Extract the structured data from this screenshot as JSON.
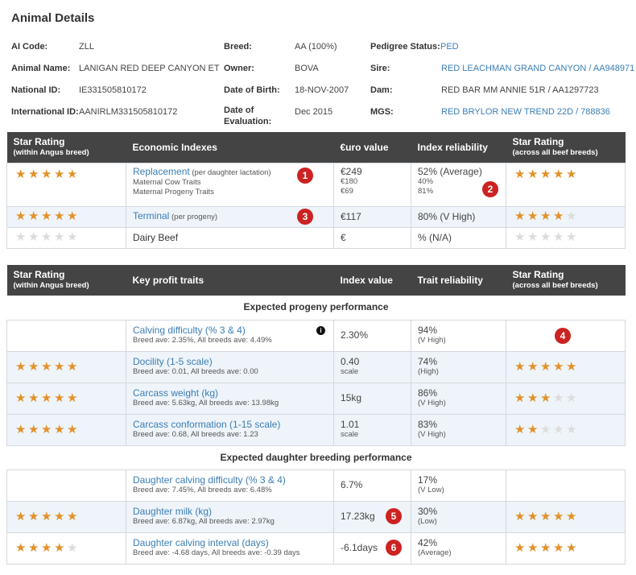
{
  "title": "Animal Details",
  "details": {
    "ai_code_label": "AI Code:",
    "ai_code": "ZLL",
    "animal_name_label": "Animal Name:",
    "animal_name": "LANIGAN RED DEEP CANYON ET",
    "national_id_label": "National ID:",
    "national_id": "IE331505810172",
    "international_id_label": "International ID:",
    "international_id": "AANIRLM331505810172",
    "breed_label": "Breed:",
    "breed": "AA (100%)",
    "owner_label": "Owner:",
    "owner": "BOVA",
    "dob_label": "Date of Birth:",
    "dob": "18-NOV-2007",
    "doe_label_1": "Date of",
    "doe_label_2": "Evaluation:",
    "doe": "Dec 2015",
    "pedigree_label": "Pedigree Status:",
    "pedigree": "PED",
    "sire_label": "Sire:",
    "sire": "RED LEACHMAN GRAND CANYON / AA948971",
    "dam_label": "Dam:",
    "dam": "RED BAR MM ANNIE 51R / AA1297723",
    "mgs_label": "MGS:",
    "mgs": "RED BRYLOR NEW TREND 22D / 788836"
  },
  "econ": {
    "headers": {
      "star_within": "Star Rating",
      "star_within_sub": "(within Angus breed)",
      "indexes": "Economic Indexes",
      "value": "€uro value",
      "reliability": "Index reliability",
      "star_across": "Star Rating",
      "star_across_sub": "(across all beef breeds)"
    },
    "rows": [
      {
        "stars_within": 5,
        "name": "Replacement",
        "note": " (per daughter lactation)",
        "sub1": "Maternal Cow Traits",
        "sub2": "Maternal Progeny Traits",
        "value": "€249",
        "sub_value1": "€180",
        "sub_value2": "€69",
        "reliability": "52% (Average)",
        "sub_rel1": "40%",
        "sub_rel2": "81%",
        "stars_across": 5,
        "badge_name": "1",
        "badge_rel": "2"
      },
      {
        "stars_within": 5,
        "name": "Terminal",
        "note": " (per progeny)",
        "value": "€117",
        "reliability": "80% (V High)",
        "stars_across": 4,
        "badge_name": "3"
      },
      {
        "stars_within": 0,
        "name": "Dairy Beef",
        "value": "€",
        "reliability": "% (N/A)",
        "stars_across": 0
      }
    ]
  },
  "traits": {
    "headers": {
      "star_within": "Star Rating",
      "star_within_sub": "(within Angus breed)",
      "traits": "Key profit traits",
      "value": "Index value",
      "reliability": "Trait reliability",
      "star_across": "Star Rating",
      "star_across_sub": "(across all beef breeds)"
    },
    "section1": "Expected progeny performance",
    "section2": "Expected daughter breeding performance",
    "progeny": [
      {
        "stars_within": null,
        "name": "Calving difficulty (% 3 & 4)",
        "ave": "Breed ave: 2.35%, All breeds ave: 4.49%",
        "value": "2.30%",
        "unit": "",
        "reliability": "94%",
        "rel_level": "(V High)",
        "stars_across": null,
        "info": "i",
        "badge_across": "4"
      },
      {
        "stars_within": 5,
        "name": "Docility (1-5 scale)",
        "ave": "Breed ave: 0.01, All breeds ave: 0.00",
        "value": "0.40",
        "unit": "scale",
        "reliability": "74%",
        "rel_level": "(High)",
        "stars_across": 5
      },
      {
        "stars_within": 5,
        "name": "Carcass weight (kg)",
        "ave": "Breed ave: 5.63kg, All breeds ave: 13.98kg",
        "value": "15kg",
        "unit": "",
        "reliability": "86%",
        "rel_level": "(V High)",
        "stars_across": 3
      },
      {
        "stars_within": 5,
        "name": "Carcass conformation (1-15 scale)",
        "ave": "Breed ave: 0.68, All breeds ave: 1.23",
        "value": "1.01",
        "unit": "scale",
        "reliability": "83%",
        "rel_level": "(V High)",
        "stars_across": 2
      }
    ],
    "daughter": [
      {
        "stars_within": null,
        "name": "Daughter calving difficulty (% 3 & 4)",
        "ave": "Breed ave: 7.45%, All breeds ave: 6.48%",
        "value": "6.7%",
        "unit": "",
        "reliability": "17%",
        "rel_level": "(V Low)",
        "stars_across": null
      },
      {
        "stars_within": 5,
        "name": "Daughter milk (kg)",
        "ave": "Breed ave: 6.87kg, All breeds ave: 2.97kg",
        "value": "17.23kg",
        "unit": "",
        "reliability": "30%",
        "rel_level": "(Low)",
        "stars_across": 5,
        "badge_value": "5"
      },
      {
        "stars_within": 4,
        "name": "Daughter calving interval (days)",
        "ave": "Breed ave: -4.68 days, All breeds ave: -0.39 days",
        "value": "-6.1days",
        "unit": "",
        "reliability": "42%",
        "rel_level": "(Average)",
        "stars_across": 5,
        "badge_value": "6"
      }
    ]
  },
  "colors": {
    "star_on": "#e2912a",
    "star_off": "#dcdcdc",
    "header_bg": "#444444",
    "link": "#3b7db4",
    "badge": "#cc2222",
    "alt_row": "#eef4f9"
  }
}
